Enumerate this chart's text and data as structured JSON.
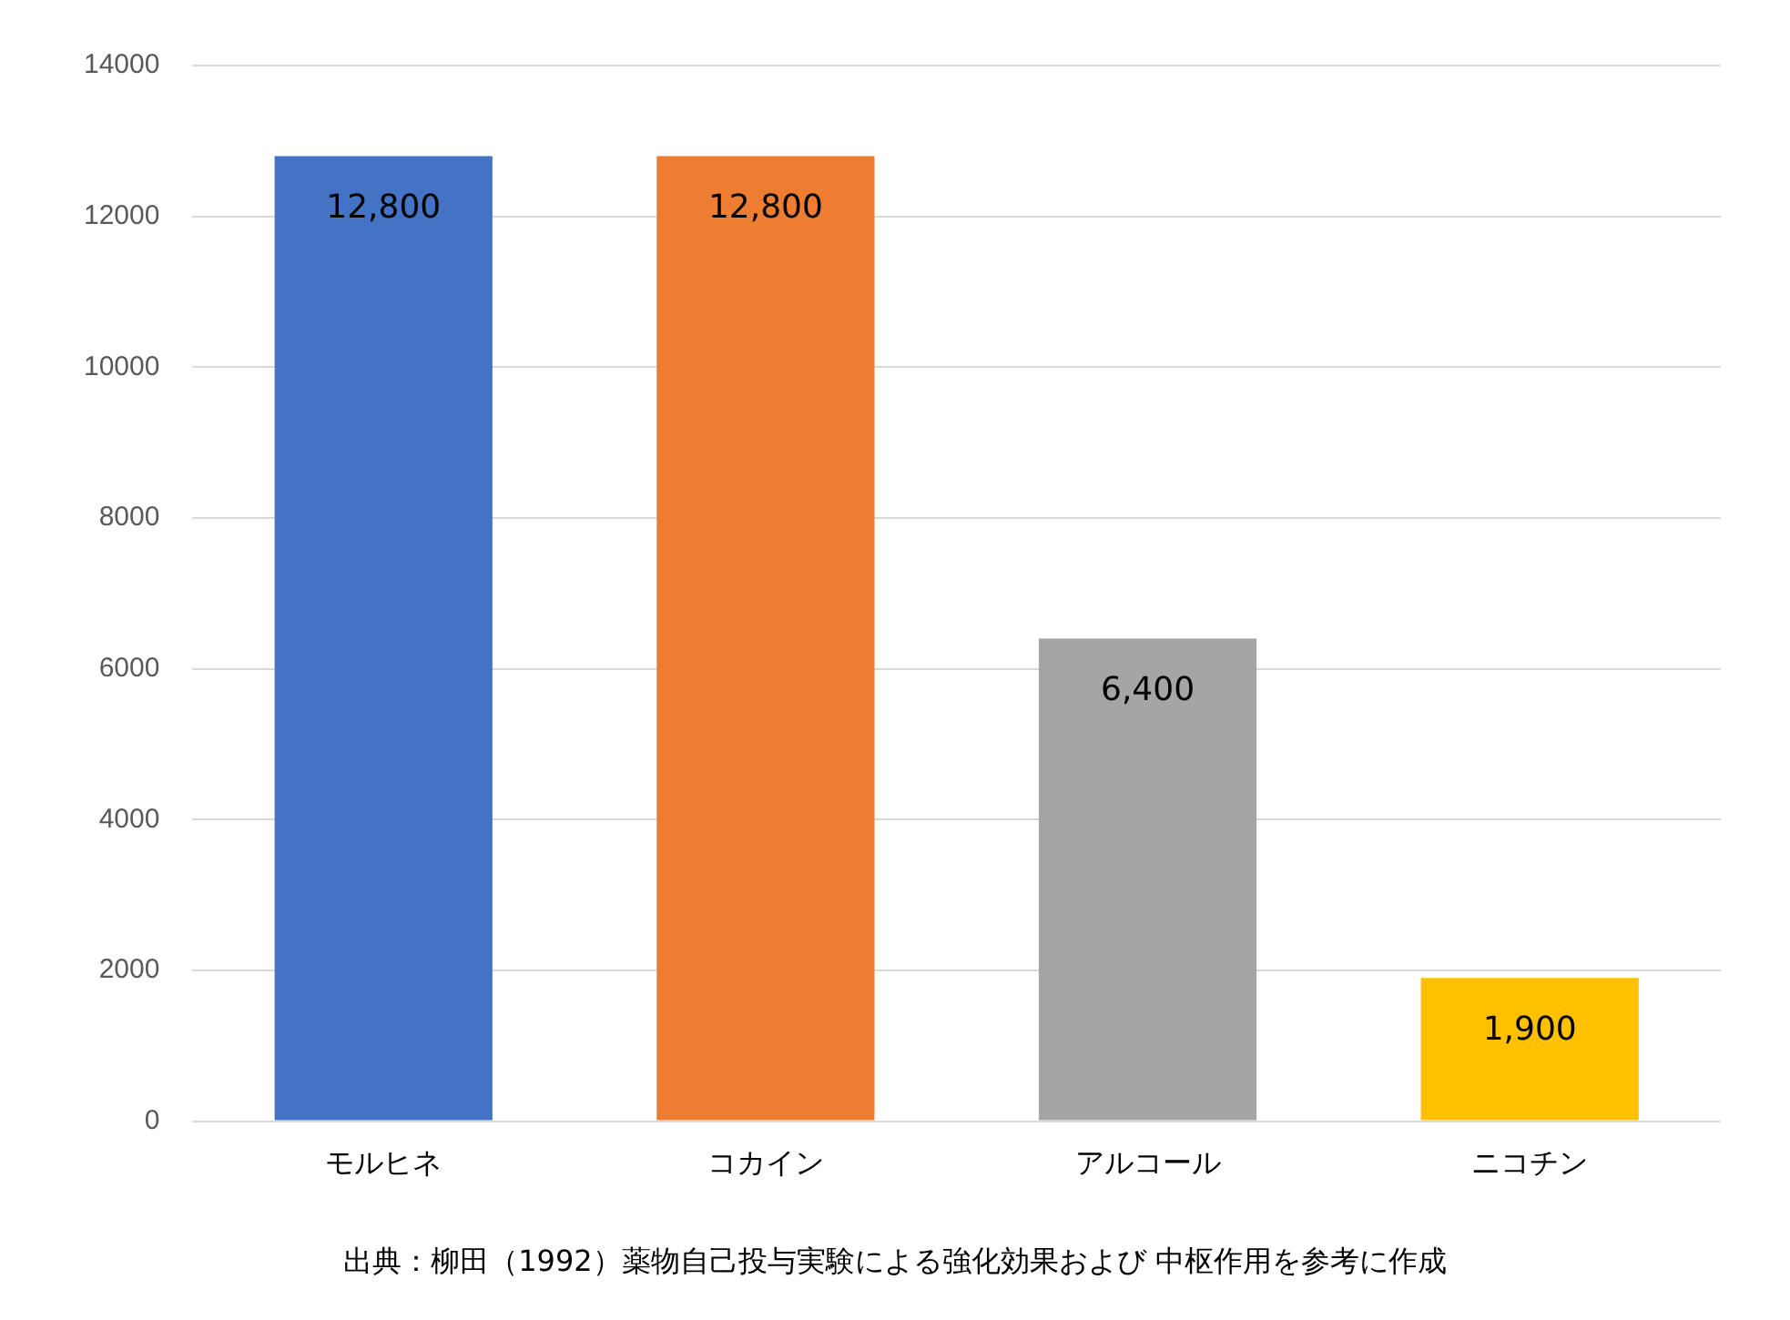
{
  "chart_data": {
    "type": "bar",
    "categories": [
      "モルヒネ",
      "コカイン",
      "アルコール",
      "ニコチン"
    ],
    "values": [
      12800,
      12800,
      6400,
      1900
    ],
    "colors": [
      "#4472c4",
      "#ed7d31",
      "#a5a5a5",
      "#ffc000"
    ],
    "value_labels": [
      "12,800",
      "12,800",
      "6,400",
      "1,900"
    ],
    "ylim": [
      0,
      14000
    ],
    "yticks": [
      0,
      2000,
      4000,
      6000,
      8000,
      10000,
      12000,
      14000
    ],
    "grid": "y",
    "legend": false,
    "annotations": [
      "出典：柳田（1992）薬物自己投与実験による強化効果および 中枢作用を参考に作成"
    ]
  }
}
